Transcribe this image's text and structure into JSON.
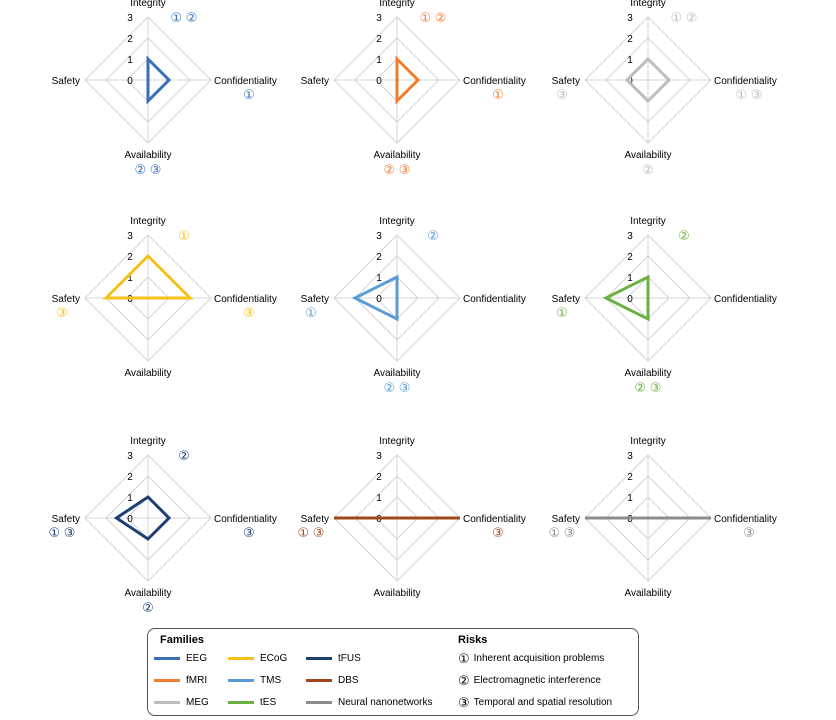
{
  "chart_data": {
    "type": "radar",
    "axes": [
      "Integrity",
      "Confidentiality",
      "Availability",
      "Safety"
    ],
    "scale": {
      "min": 0,
      "max": 3,
      "ticks": [
        "0",
        "1",
        "2",
        "3"
      ]
    },
    "charts": [
      {
        "family": "EEG",
        "color": "#3a6fb5",
        "values": {
          "Integrity": 1,
          "Confidentiality": 1,
          "Availability": 1,
          "Safety": 0
        },
        "risks": {
          "Integrity": "① ②",
          "Confidentiality": "①",
          "Availability": "② ③",
          "Safety": ""
        }
      },
      {
        "family": "fMRI",
        "color": "#ee7d31",
        "values": {
          "Integrity": 1,
          "Confidentiality": 1,
          "Availability": 1,
          "Safety": 0
        },
        "risks": {
          "Integrity": "① ②",
          "Confidentiality": "①",
          "Availability": "② ③",
          "Safety": ""
        }
      },
      {
        "family": "MEG",
        "color": "#bdbdbd",
        "values": {
          "Integrity": 1,
          "Confidentiality": 1,
          "Availability": 1,
          "Safety": 1
        },
        "risks": {
          "Integrity": "① ②",
          "Confidentiality": "① ③",
          "Availability": "②",
          "Safety": "③"
        }
      },
      {
        "family": "ECoG",
        "color": "#f6c21a",
        "values": {
          "Integrity": 2,
          "Confidentiality": 2,
          "Availability": 0,
          "Safety": 2
        },
        "risks": {
          "Integrity": "①",
          "Confidentiality": "③",
          "Availability": "",
          "Safety": "③"
        }
      },
      {
        "family": "TMS",
        "color": "#5b9bd5",
        "values": {
          "Integrity": 1,
          "Confidentiality": 0,
          "Availability": 1,
          "Safety": 2
        },
        "risks": {
          "Integrity": "②",
          "Confidentiality": "",
          "Availability": "② ③",
          "Safety": "①"
        }
      },
      {
        "family": "tES",
        "color": "#6cb043",
        "values": {
          "Integrity": 1,
          "Confidentiality": 0,
          "Availability": 1,
          "Safety": 2
        },
        "risks": {
          "Integrity": "②",
          "Confidentiality": "",
          "Availability": "② ③",
          "Safety": "①"
        }
      },
      {
        "family": "tFUS",
        "color": "#1f3f73",
        "values": {
          "Integrity": 1,
          "Confidentiality": 1,
          "Availability": 1,
          "Safety": 1.5
        },
        "risks": {
          "Integrity": "②",
          "Confidentiality": "③",
          "Availability": "②",
          "Safety": "① ③"
        }
      },
      {
        "family": "DBS",
        "color": "#a0481a",
        "values": {
          "Integrity": 0,
          "Confidentiality": 3,
          "Availability": 0,
          "Safety": 3
        },
        "risks": {
          "Integrity": "",
          "Confidentiality": "③",
          "Availability": "",
          "Safety": "① ③"
        }
      },
      {
        "family": "Neural nanonetworks",
        "color": "#8c8c8c",
        "values": {
          "Integrity": 0,
          "Confidentiality": 3,
          "Availability": 0,
          "Safety": 3
        },
        "risks": {
          "Integrity": "",
          "Confidentiality": "③",
          "Availability": "",
          "Safety": "① ③"
        }
      }
    ]
  },
  "legend": {
    "families_title": "Families",
    "risks_title": "Risks",
    "families": [
      {
        "label": "EEG",
        "color": "#3a6fb5"
      },
      {
        "label": "ECoG",
        "color": "#f6c21a"
      },
      {
        "label": "tFUS",
        "color": "#1f3f73"
      },
      {
        "label": "fMRI",
        "color": "#ee7d31"
      },
      {
        "label": "TMS",
        "color": "#5b9bd5"
      },
      {
        "label": "DBS",
        "color": "#a0481a"
      },
      {
        "label": "MEG",
        "color": "#bdbdbd"
      },
      {
        "label": "tES",
        "color": "#6cb043"
      },
      {
        "label": "Neural nanonetworks",
        "color": "#8c8c8c"
      }
    ],
    "risks": [
      {
        "num": "①",
        "label": "Inherent acquisition problems"
      },
      {
        "num": "②",
        "label": "Electromagnetic interference"
      },
      {
        "num": "③",
        "label": "Temporal and spatial resolution"
      }
    ]
  }
}
